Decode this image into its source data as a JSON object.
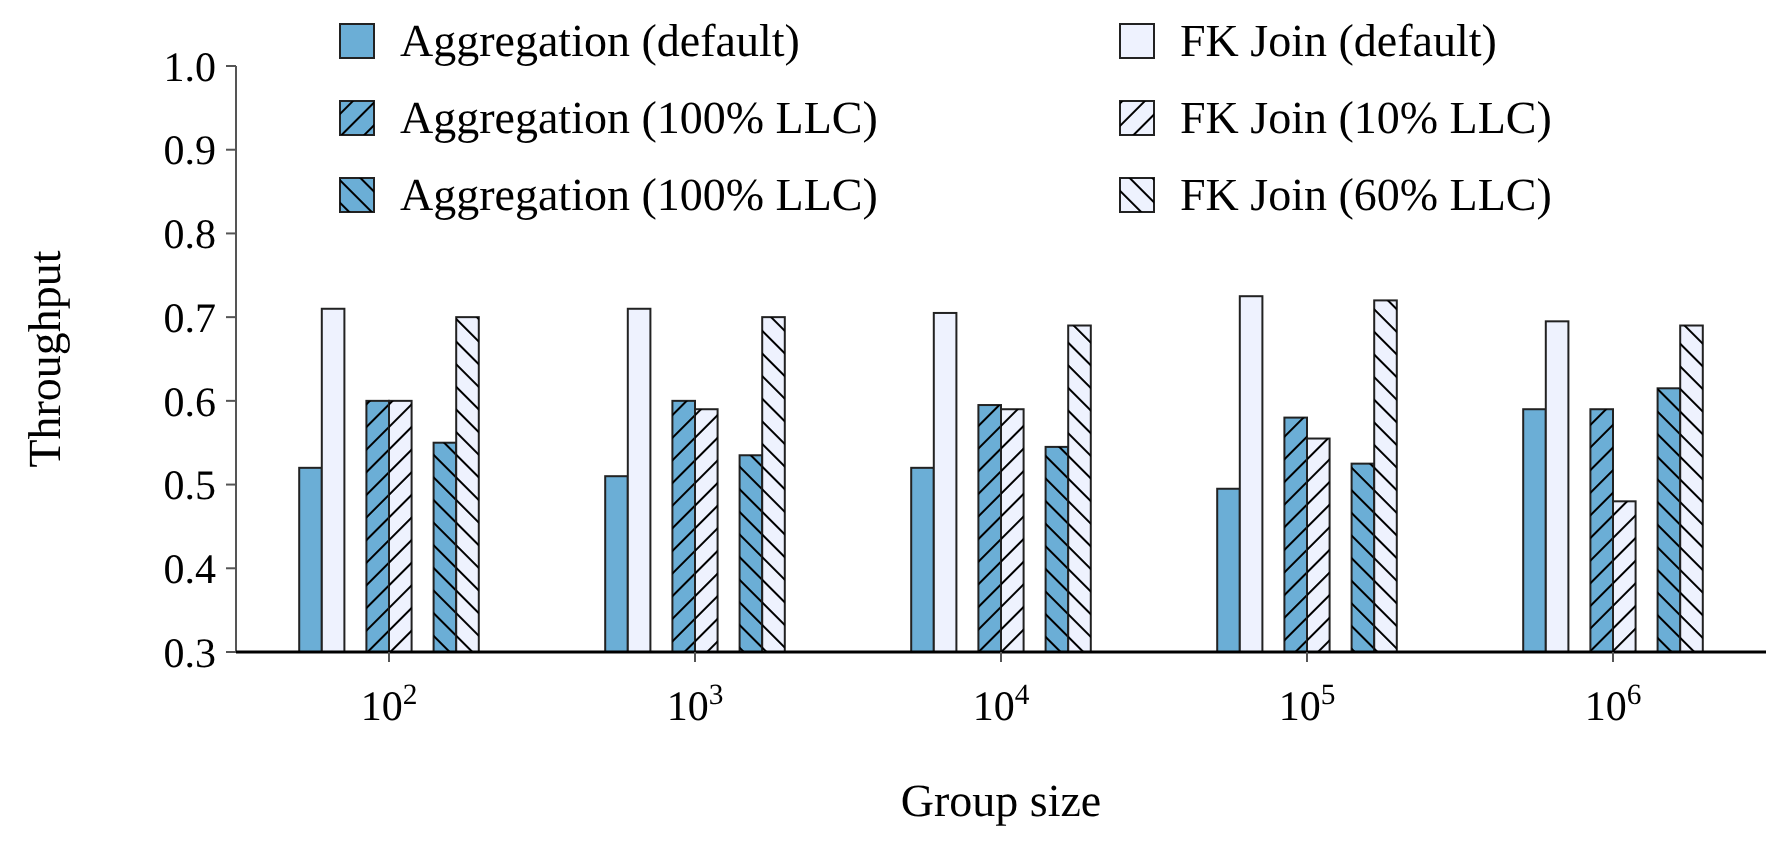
{
  "chart_data": {
    "type": "bar",
    "xlabel": "Group size",
    "ylabel": "Throughput",
    "categories": [
      "10$^{2}$",
      "10$^{3}$",
      "10$^{4}$",
      "10$^{5}$",
      "10$^{6}$"
    ],
    "series": [
      {
        "name": "Aggregation (default)",
        "color": "#6baed6",
        "values": [
          0.52,
          0.51,
          0.52,
          0.495,
          0.59
        ]
      },
      {
        "name": "FK Join (default)",
        "color": "#eef2fe",
        "values": [
          0.71,
          0.71,
          0.705,
          0.725,
          0.695
        ]
      },
      {
        "name": "Aggregation (100% LLC)",
        "color": "#6baed6",
        "values": [
          0.6,
          0.6,
          0.595,
          0.58,
          0.59
        ]
      },
      {
        "name": "FK Join (10% LLC)",
        "color": "#eef2fe",
        "values": [
          0.6,
          0.59,
          0.59,
          0.555,
          0.48
        ]
      },
      {
        "name": "Aggregation (100% LLC)",
        "color": "#6baed6",
        "values": [
          0.55,
          0.535,
          0.545,
          0.525,
          0.615
        ]
      },
      {
        "name": "FK Join (60% LLC)",
        "color": "#eef2fe",
        "values": [
          0.7,
          0.7,
          0.69,
          0.72,
          0.69
        ]
      }
    ],
    "ylim": [
      0.3,
      1.0
    ],
    "yticks": [
      {
        "value": 0.3,
        "label": "0.3"
      },
      {
        "value": 0.4,
        "label": "0.4"
      },
      {
        "value": 0.5,
        "label": "0.5"
      },
      {
        "value": 0.6,
        "label": "0.6"
      },
      {
        "value": 0.7,
        "label": "0.7"
      },
      {
        "value": 0.8,
        "label": "0.8"
      },
      {
        "value": 0.9,
        "label": "0.9"
      },
      {
        "value": 1.0,
        "label": "1.0"
      }
    ],
    "legend": "top",
    "grid": false
  }
}
